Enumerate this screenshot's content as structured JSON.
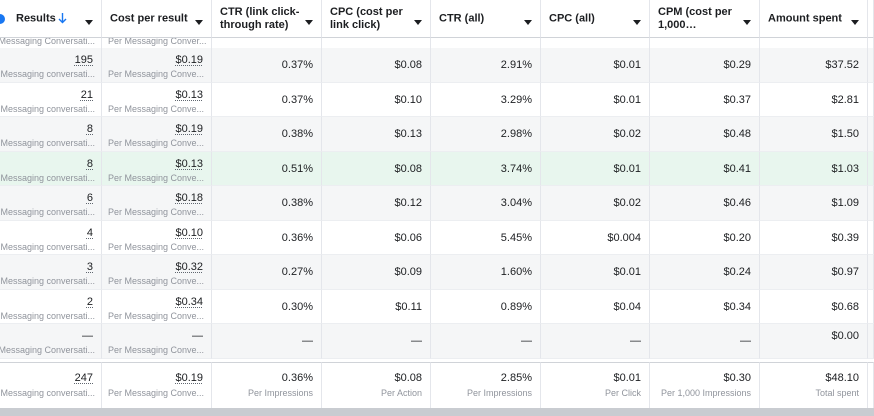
{
  "header": {
    "columns": [
      "Results",
      "Cost per result",
      "CTR (link click-through rate)",
      "CPC (cost per link click)",
      "CTR (all)",
      "CPC (all)",
      "CPM (cost per 1,000…",
      "Amount spent"
    ]
  },
  "partial_row": [
    "Messaging Conversati...",
    "Per Messaging Conver..."
  ],
  "rows": [
    [
      {
        "text": "195",
        "sub": "Messaging conversati..."
      },
      {
        "text": "$0.19",
        "sub": "Per Messaging Conve..."
      },
      "0.37%",
      "$0.08",
      "2.91%",
      "$0.01",
      "$0.29",
      "$37.52"
    ],
    [
      {
        "text": "21",
        "sub": "Messaging conversati..."
      },
      {
        "text": "$0.13",
        "sub": "Per Messaging Conve..."
      },
      "0.37%",
      "$0.10",
      "3.29%",
      "$0.01",
      "$0.37",
      "$2.81"
    ],
    [
      {
        "text": "8",
        "sub": "Messaging conversati..."
      },
      {
        "text": "$0.19",
        "sub": "Per Messaging Conve..."
      },
      "0.38%",
      "$0.13",
      "2.98%",
      "$0.02",
      "$0.48",
      "$1.50"
    ],
    [
      {
        "text": "8",
        "sub": "Messaging conversati..."
      },
      {
        "text": "$0.13",
        "sub": "Per Messaging Conve..."
      },
      "0.51%",
      "$0.08",
      "3.74%",
      "$0.01",
      "$0.41",
      "$1.03"
    ],
    [
      {
        "text": "6",
        "sub": "Messaging conversati..."
      },
      {
        "text": "$0.18",
        "sub": "Per Messaging Conve..."
      },
      "0.38%",
      "$0.12",
      "3.04%",
      "$0.02",
      "$0.46",
      "$1.09"
    ],
    [
      {
        "text": "4",
        "sub": "Messaging conversati..."
      },
      {
        "text": "$0.10",
        "sub": "Per Messaging Conve..."
      },
      "0.36%",
      "$0.06",
      "5.45%",
      "$0.004",
      "$0.20",
      "$0.39"
    ],
    [
      {
        "text": "3",
        "sub": "Messaging conversati..."
      },
      {
        "text": "$0.32",
        "sub": "Per Messaging Conve..."
      },
      "0.27%",
      "$0.09",
      "1.60%",
      "$0.01",
      "$0.24",
      "$0.97"
    ],
    [
      {
        "text": "2",
        "sub": "Messaging conversati..."
      },
      {
        "text": "$0.34",
        "sub": "Per Messaging Conve..."
      },
      "0.30%",
      "$0.11",
      "0.89%",
      "$0.04",
      "$0.34",
      "$0.68"
    ],
    [
      {
        "text": "—",
        "sub": "Messaging Conversati..."
      },
      {
        "text": "—",
        "sub": "Per Messaging Conve..."
      },
      "—",
      "—",
      "—",
      "—",
      "—",
      "$0.00"
    ]
  ],
  "total": [
    {
      "text": "247",
      "sub": "Messaging conversati..."
    },
    {
      "text": "$0.19",
      "sub": "Per Messaging Conve..."
    },
    {
      "text": "0.36%",
      "sub": "Per Impressions"
    },
    {
      "text": "$0.08",
      "sub": "Per Action"
    },
    {
      "text": "2.85%",
      "sub": "Per Impressions"
    },
    {
      "text": "$0.01",
      "sub": "Per Click"
    },
    {
      "text": "$0.30",
      "sub": "Per 1,000 Impressions"
    },
    {
      "text": "$48.10",
      "sub": "Total spent"
    }
  ]
}
